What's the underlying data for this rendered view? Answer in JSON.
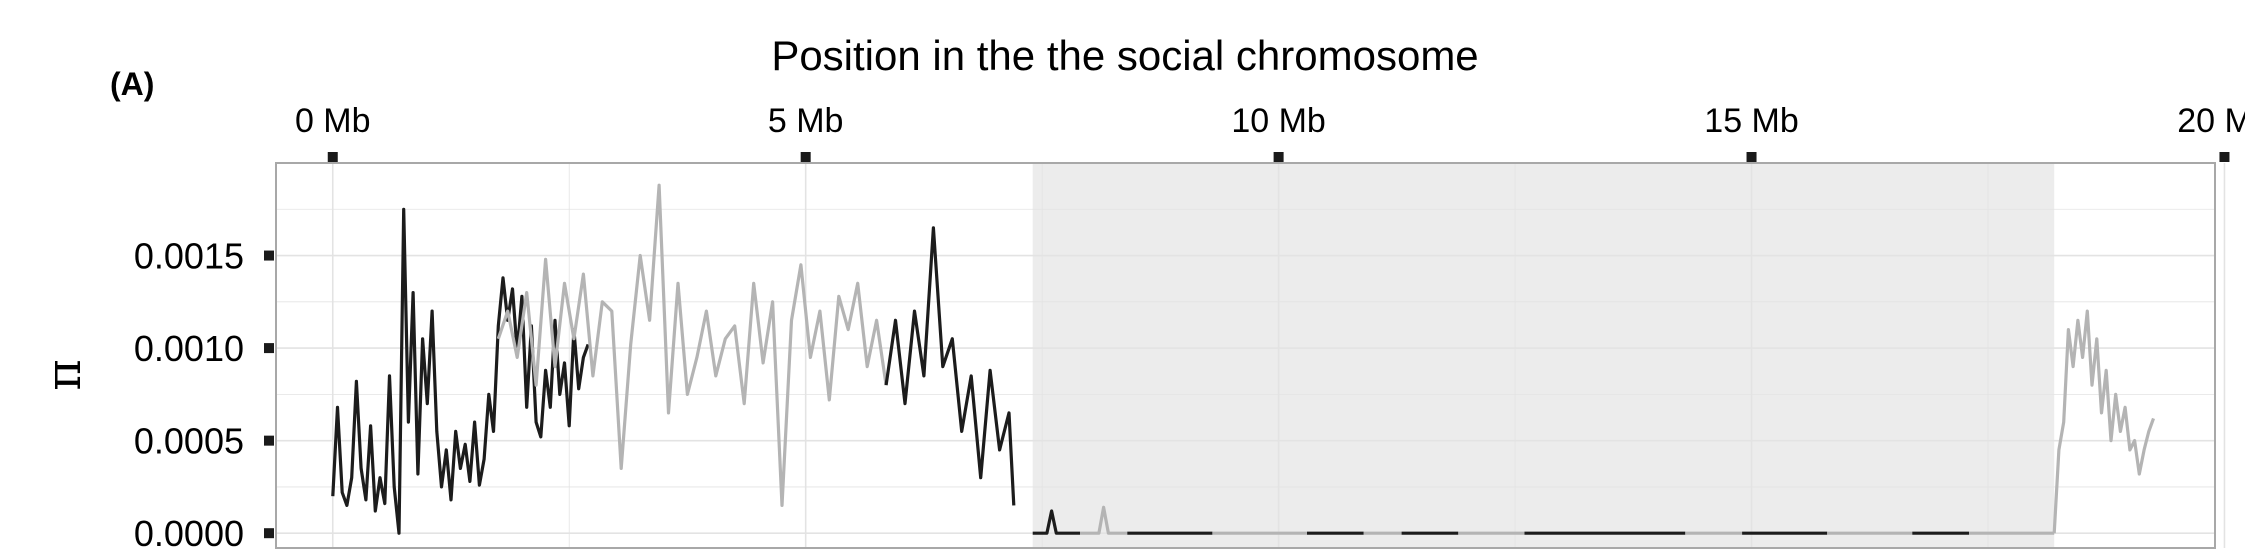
{
  "panel_label": "(A)",
  "chart_data": {
    "type": "line",
    "title": "Position in the the social chromosome",
    "xlabel": "Position in the the social chromosome",
    "ylabel": "π",
    "x_unit": "Mb",
    "xlim": [
      -0.6,
      19.9
    ],
    "ylim": [
      -8e-05,
      0.002
    ],
    "xticks": [
      0,
      5,
      10,
      15,
      20
    ],
    "xtick_labels": [
      "0 Mb",
      "5 Mb",
      "10 Mb",
      "15 Mb",
      "20 Mb"
    ],
    "yticks": [
      0.0,
      0.0005,
      0.001,
      0.0015
    ],
    "ytick_labels": [
      "0.0000",
      "0.0005",
      "0.0010",
      "0.0015"
    ],
    "grid": true,
    "legend": "none",
    "shaded_region": {
      "x_start": 7.4,
      "x_end": 18.2,
      "color": "#ececec"
    },
    "colors": {
      "dark": "#1c1c1c",
      "light": "#b4b4b4",
      "frame": "#a8a8a8",
      "grid": "#e3e3e3"
    },
    "series": [
      {
        "color": "dark",
        "x": [
          0.0,
          0.05,
          0.1,
          0.15,
          0.2,
          0.25,
          0.3,
          0.35,
          0.4,
          0.45,
          0.5,
          0.55,
          0.6,
          0.65,
          0.7,
          0.75,
          0.8,
          0.85,
          0.9,
          0.95,
          1.0,
          1.05,
          1.1,
          1.15,
          1.2,
          1.25,
          1.3,
          1.35,
          1.4,
          1.45,
          1.5,
          1.55,
          1.6,
          1.65,
          1.7,
          1.75,
          1.8,
          1.85,
          1.9,
          1.95,
          2.0,
          2.05,
          2.1,
          2.15,
          2.2,
          2.25,
          2.3,
          2.35,
          2.4,
          2.45,
          2.5,
          2.55,
          2.6,
          2.65,
          2.7
        ],
        "y": [
          0.0002,
          0.00068,
          0.00022,
          0.00015,
          0.0003,
          0.00082,
          0.00035,
          0.00018,
          0.00058,
          0.00012,
          0.0003,
          0.00016,
          0.00085,
          0.00025,
          0.0,
          0.00175,
          0.0006,
          0.0013,
          0.00032,
          0.00105,
          0.0007,
          0.0012,
          0.00055,
          0.00025,
          0.00045,
          0.00018,
          0.00055,
          0.00035,
          0.00048,
          0.00028,
          0.0006,
          0.00026,
          0.0004,
          0.00075,
          0.00055,
          0.00112,
          0.00138,
          0.00115,
          0.00132,
          0.00098,
          0.00128,
          0.00068,
          0.00112,
          0.0006,
          0.00052,
          0.00088,
          0.00068,
          0.00115,
          0.00075,
          0.00092,
          0.00058,
          0.0011,
          0.00078,
          0.00095,
          0.00102
        ]
      },
      {
        "color": "light",
        "x": [
          1.75,
          1.85,
          1.95,
          2.05,
          2.15,
          2.25,
          2.35,
          2.45,
          2.55,
          2.65,
          2.75,
          2.85,
          2.95,
          3.05,
          3.15,
          3.25,
          3.35,
          3.45,
          3.55,
          3.65,
          3.75,
          3.85,
          3.95,
          4.05,
          4.15,
          4.25,
          4.35,
          4.45,
          4.55,
          4.65,
          4.75,
          4.85,
          4.95,
          5.05,
          5.15,
          5.25,
          5.35,
          5.45,
          5.55,
          5.65,
          5.75,
          5.85
        ],
        "y": [
          0.00105,
          0.0012,
          0.00095,
          0.0013,
          0.0008,
          0.00148,
          0.0009,
          0.00135,
          0.00105,
          0.0014,
          0.00085,
          0.00125,
          0.0012,
          0.00035,
          0.00102,
          0.0015,
          0.00115,
          0.00188,
          0.00065,
          0.00135,
          0.00075,
          0.00095,
          0.0012,
          0.00085,
          0.00105,
          0.00112,
          0.0007,
          0.00135,
          0.00092,
          0.00125,
          0.00015,
          0.00115,
          0.00145,
          0.00095,
          0.0012,
          0.00072,
          0.00128,
          0.0011,
          0.00135,
          0.0009,
          0.00115,
          0.0008
        ]
      },
      {
        "color": "dark",
        "x": [
          5.85,
          5.95,
          6.05,
          6.15,
          6.25,
          6.35,
          6.45,
          6.55,
          6.65,
          6.75,
          6.85,
          6.95,
          7.05,
          7.15,
          7.2
        ],
        "y": [
          0.0008,
          0.00115,
          0.0007,
          0.0012,
          0.00085,
          0.00165,
          0.0009,
          0.00105,
          0.00055,
          0.00085,
          0.0003,
          0.00088,
          0.00045,
          0.00065,
          0.00015
        ]
      },
      {
        "color": "dark",
        "x": [
          7.4,
          7.55,
          7.6,
          7.65,
          7.7,
          7.9
        ],
        "y": [
          0.0,
          0.0,
          0.00012,
          0.0,
          0.0,
          0.0
        ]
      },
      {
        "color": "light",
        "x": [
          7.9,
          8.1,
          8.15,
          8.2,
          8.4
        ],
        "y": [
          0.0,
          0.0,
          0.00014,
          0.0,
          0.0
        ]
      },
      {
        "color": "dark",
        "x": [
          8.4,
          8.8,
          9.3
        ],
        "y": [
          0.0,
          0.0,
          0.0
        ]
      },
      {
        "color": "light",
        "x": [
          9.3,
          9.8,
          10.3
        ],
        "y": [
          0.0,
          0.0,
          0.0
        ]
      },
      {
        "color": "dark",
        "x": [
          10.3,
          10.9
        ],
        "y": [
          0.0,
          0.0
        ]
      },
      {
        "color": "light",
        "x": [
          10.9,
          11.3
        ],
        "y": [
          0.0,
          0.0
        ]
      },
      {
        "color": "dark",
        "x": [
          11.3,
          11.9
        ],
        "y": [
          0.0,
          0.0
        ]
      },
      {
        "color": "light",
        "x": [
          11.9,
          12.6
        ],
        "y": [
          0.0,
          0.0
        ]
      },
      {
        "color": "dark",
        "x": [
          12.6,
          13.2,
          13.6,
          14.3
        ],
        "y": [
          0.0,
          0.0,
          0.0,
          0.0
        ]
      },
      {
        "color": "light",
        "x": [
          14.3,
          14.9
        ],
        "y": [
          0.0,
          0.0
        ]
      },
      {
        "color": "dark",
        "x": [
          14.9,
          15.8
        ],
        "y": [
          0.0,
          0.0
        ]
      },
      {
        "color": "light",
        "x": [
          15.8,
          16.7
        ],
        "y": [
          0.0,
          0.0
        ]
      },
      {
        "color": "dark",
        "x": [
          16.7,
          17.3
        ],
        "y": [
          0.0,
          0.0
        ]
      },
      {
        "color": "light",
        "x": [
          17.3,
          18.2
        ],
        "y": [
          0.0,
          0.0
        ]
      },
      {
        "color": "light",
        "x": [
          18.2,
          18.25,
          18.3,
          18.35,
          18.4,
          18.45,
          18.5,
          18.55,
          18.6,
          18.65,
          18.7,
          18.75,
          18.8,
          18.85,
          18.9,
          18.95,
          19.0,
          19.05,
          19.1,
          19.15,
          19.2,
          19.25
        ],
        "y": [
          0.0,
          0.00045,
          0.0006,
          0.0011,
          0.0009,
          0.00115,
          0.00095,
          0.0012,
          0.0008,
          0.00105,
          0.00065,
          0.00088,
          0.0005,
          0.00075,
          0.00055,
          0.00068,
          0.00045,
          0.0005,
          0.00032,
          0.00045,
          0.00055,
          0.00062
        ]
      }
    ]
  }
}
